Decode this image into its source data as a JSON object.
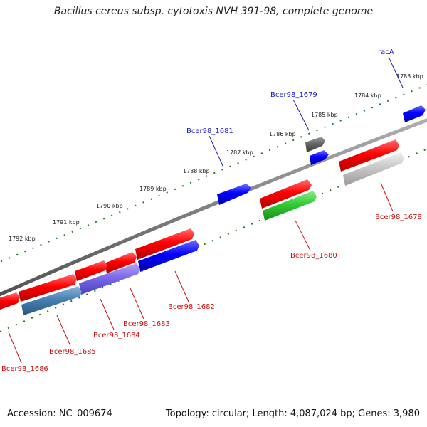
{
  "title": "Bacillus cereus subsp. cytotoxis NVH 391-98, complete genome",
  "footer": {
    "accession": "Accession: NC_009674",
    "summary": "Topology: circular; Length: 4,087,024 bp; Genes: 3,980"
  },
  "colors": {
    "backbone": "#808080",
    "ticks": "#1e7a1e",
    "label_forward": "#1c1cc8",
    "label_reverse": "#cc1010"
  },
  "scale_labels": [
    "1783 kbp",
    "1784 kbp",
    "1785 kbp",
    "1786 kbp",
    "1787 kbp",
    "1788 kbp",
    "1789 kbp",
    "1790 kbp",
    "1791 kbp",
    "1792 kbp"
  ],
  "genes": [
    {
      "name": "racA",
      "strand": "forward",
      "color": "#0000ff"
    },
    {
      "name": "Bcer98_1679",
      "strand": "forward",
      "color": "#0000ff"
    },
    {
      "name": "Bcer98_1681",
      "strand": "forward",
      "color": "#0000ff"
    },
    {
      "name": "Bcer98_1678",
      "strand": "reverse",
      "color": "#ff0000"
    },
    {
      "name": "Bcer98_1680",
      "strand": "reverse",
      "color": "#ff0000"
    },
    {
      "name": "Bcer98_1682",
      "strand": "reverse",
      "color": "#ff0000"
    },
    {
      "name": "Bcer98_1683",
      "strand": "reverse",
      "color": "#ff0000"
    },
    {
      "name": "Bcer98_1684",
      "strand": "reverse",
      "color": "#ff0000"
    },
    {
      "name": "Bcer98_1685",
      "strand": "reverse",
      "color": "#ff0000"
    },
    {
      "name": "Bcer98_1686",
      "strand": "reverse",
      "color": "#ff0000"
    }
  ]
}
